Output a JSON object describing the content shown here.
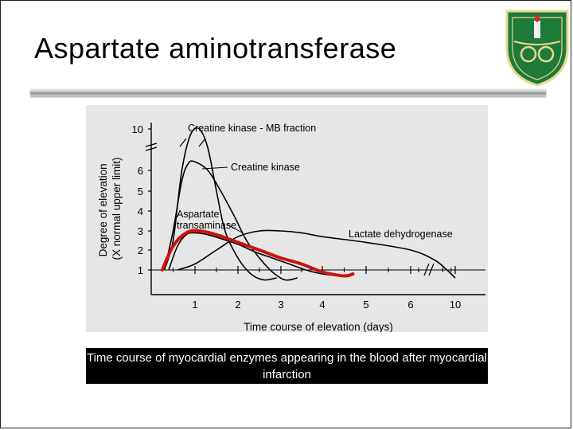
{
  "slide": {
    "title": "Aspartate aminotransferase",
    "caption": "Time course of myocardial enzymes appearing in the blood after myocardial infarction"
  },
  "colors": {
    "logo_green": "#1f7a3a",
    "highlight_red": "#cc1111",
    "chart_background": "#e6e6e6"
  },
  "chart_data": {
    "type": "line",
    "xlabel": "Time course of elevation (days)",
    "ylabel": "Degree of elevation (X normal upper limit)",
    "x_ticks": [
      "1",
      "2",
      "3",
      "4",
      "5",
      "6",
      "10"
    ],
    "y_ticks": [
      "1",
      "2",
      "3",
      "4",
      "5",
      "6",
      "10"
    ],
    "xlim": [
      0,
      10
    ],
    "ylim": [
      0,
      10
    ],
    "grid": false,
    "series": [
      {
        "name": "Creatine kinase - MB fraction",
        "x": [
          0.3,
          0.5,
          0.7,
          0.9,
          1.1,
          1.3,
          1.5,
          1.7,
          2.0,
          2.3,
          2.6,
          2.9
        ],
        "y": [
          1.0,
          2.5,
          6.0,
          9.5,
          10.0,
          8.0,
          5.0,
          3.0,
          1.6,
          0.8,
          0.5,
          0.6
        ]
      },
      {
        "name": "Creatine kinase",
        "x": [
          0.3,
          0.5,
          0.7,
          0.85,
          1.0,
          1.3,
          1.6,
          1.9,
          2.2,
          2.5,
          2.8,
          3.1,
          3.4
        ],
        "y": [
          1.0,
          3.0,
          5.5,
          6.5,
          6.6,
          6.0,
          5.0,
          3.8,
          2.5,
          1.6,
          0.9,
          0.5,
          0.6
        ]
      },
      {
        "name": "Aspartate transaminase",
        "x": [
          0.4,
          0.6,
          0.8,
          1.0,
          1.3,
          1.6,
          2.0,
          2.4,
          2.8,
          3.2,
          3.6,
          4.0,
          4.4
        ],
        "y": [
          1.0,
          2.2,
          2.8,
          2.9,
          2.8,
          2.6,
          2.3,
          1.9,
          1.6,
          1.3,
          1.0,
          0.8,
          0.7
        ]
      },
      {
        "name": "Lactate dehydrogenase",
        "x": [
          0.6,
          1.0,
          1.5,
          2.0,
          2.5,
          3.0,
          3.5,
          4.0,
          5.0,
          6.0,
          7.5,
          9.0,
          10.0
        ],
        "y": [
          1.0,
          1.3,
          2.0,
          2.7,
          3.0,
          3.0,
          2.9,
          2.7,
          2.4,
          2.0,
          1.5,
          1.0,
          0.6
        ]
      }
    ],
    "annotation": {
      "label": "Aspartate transaminase (highlighted)",
      "x": [
        0.25,
        0.5,
        0.8,
        1.1,
        1.5,
        2.0,
        2.5,
        3.0,
        3.5,
        4.0,
        4.5,
        4.7
      ],
      "y": [
        1.0,
        2.2,
        2.9,
        3.0,
        2.8,
        2.4,
        2.0,
        1.6,
        1.3,
        0.9,
        0.7,
        0.8
      ]
    }
  }
}
